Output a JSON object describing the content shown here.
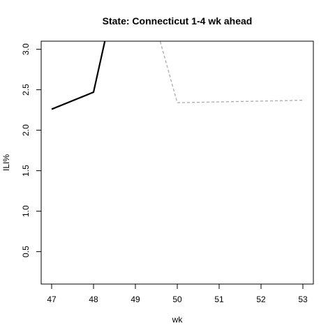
{
  "chart_data": {
    "type": "line",
    "title": "State: Connecticut 1-4 wk ahead",
    "xlabel": "wk",
    "ylabel": "ILI%",
    "xlim": [
      47,
      53
    ],
    "ylim": [
      0.1,
      3.1
    ],
    "x_ticks": [
      47,
      48,
      49,
      50,
      51,
      52,
      53
    ],
    "y_ticks": [
      0.5,
      1.0,
      1.5,
      2.0,
      2.5,
      3.0
    ],
    "y_tick_labels": [
      "0.5",
      "1.0",
      "1.5",
      "2.0",
      "2.5",
      "3.0"
    ],
    "grid": false,
    "series": [
      {
        "style": "solid",
        "color": "#000000",
        "x": [
          47,
          48,
          49
        ],
        "y": [
          2.26,
          2.47,
          4.8
        ]
      },
      {
        "style": "dashed",
        "color": "#aaaaaa",
        "x": [
          49,
          50,
          51,
          52,
          53
        ],
        "y": [
          4.2,
          2.34,
          2.35,
          2.36,
          2.37
        ]
      }
    ]
  }
}
